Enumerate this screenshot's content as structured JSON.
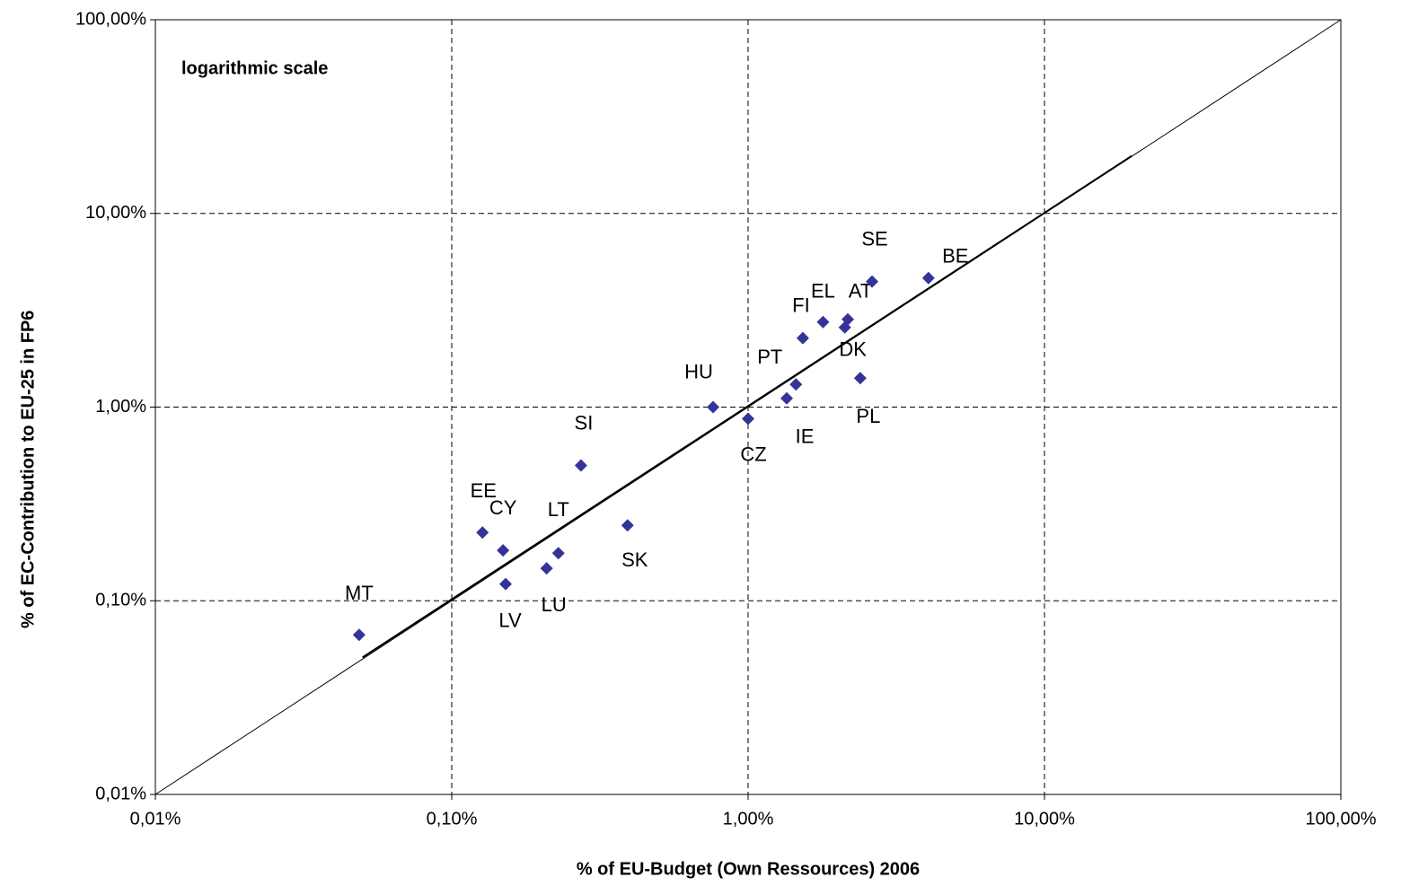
{
  "chart_data": {
    "type": "scatter",
    "annotation": "logarithmic scale",
    "x_label": "% of EU-Budget (Own Ressources) 2006",
    "y_label": "% of EC-Contribution to EU-25 in FP6",
    "log_x": true,
    "log_y": true,
    "grid": true,
    "xlim": [
      0.01,
      100
    ],
    "ylim": [
      0.01,
      100
    ],
    "xticks": [
      {
        "value": 0.01,
        "label": "0,01%"
      },
      {
        "value": 0.1,
        "label": "0,10%"
      },
      {
        "value": 1,
        "label": "1,00%"
      },
      {
        "value": 10,
        "label": "10,00%"
      },
      {
        "value": 100,
        "label": "100,00%"
      }
    ],
    "yticks": [
      {
        "value": 0.01,
        "label": "0,01%"
      },
      {
        "value": 0.1,
        "label": "0,10%"
      },
      {
        "value": 1,
        "label": "1,00%"
      },
      {
        "value": 10,
        "label": "10,00%"
      },
      {
        "value": 100,
        "label": "100,00%"
      }
    ],
    "color": "#333399",
    "labels": [
      "MT",
      "EE",
      "CY",
      "LV",
      "LU",
      "LT",
      "SI",
      "SK",
      "HU",
      "CZ",
      "IE",
      "PT",
      "FI",
      "EL",
      "DK",
      "AT",
      "PL",
      "SE",
      "BE"
    ],
    "x": [
      0.0487,
      0.127,
      0.149,
      0.152,
      0.209,
      0.229,
      0.273,
      0.392,
      0.762,
      1.0,
      1.35,
      1.45,
      1.53,
      1.79,
      2.12,
      2.17,
      2.39,
      2.62,
      4.06
    ],
    "values": [
      0.0667,
      0.225,
      0.182,
      0.122,
      0.147,
      0.176,
      0.5,
      0.245,
      1.0,
      0.87,
      1.11,
      1.31,
      2.27,
      2.75,
      2.58,
      2.84,
      1.41,
      4.45,
      4.64
    ],
    "trendline": {
      "x": [
        0.05,
        19.7
      ],
      "values": [
        0.051,
        19.8
      ]
    }
  }
}
